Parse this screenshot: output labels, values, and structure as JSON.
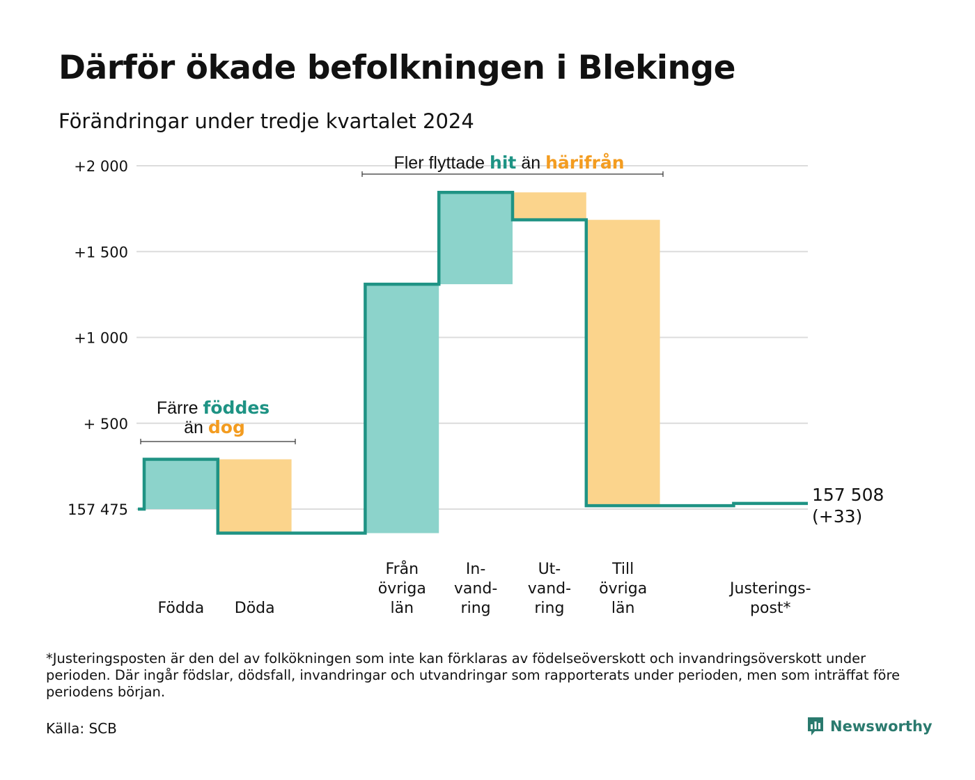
{
  "title": "Därför ökade befolkningen i Blekinge",
  "subtitle": "Förändringar under tredje kvartalet 2024",
  "footnote": "*Justeringsposten är den del av folkökningen som inte kan förklaras av födelseöverskott och invandringsöverskott under perioden. Där ingår födslar, dödsfall, invandringar och utvandringar som rapporterats under perioden, men som inträffat före periodens början.",
  "source": "Källa: SCB",
  "brand": "Newsworthy",
  "colors": {
    "teal": "#8cd3cb",
    "orange": "#fbd48c",
    "line": "#1f9384",
    "teal_text": "#1e9384",
    "orange_text": "#f39c20",
    "grid": "#dcdcdc"
  },
  "chart_data": {
    "type": "waterfall",
    "start_value": 157475,
    "end_value": 157508,
    "end_label": "157 508",
    "end_change_label": "(+33)",
    "y_ticks": [
      {
        "value": 0,
        "label": "157 475"
      },
      {
        "value": 500,
        "label": "+  500"
      },
      {
        "value": 1000,
        "label": "+1 000"
      },
      {
        "value": 1500,
        "label": "+1 500"
      },
      {
        "value": 2000,
        "label": "+2 000"
      }
    ],
    "ylim": [
      -200,
      2000
    ],
    "grid": true,
    "steps": [
      {
        "key": "fodda",
        "label_lines": [
          "Födda"
        ],
        "start": 0,
        "end": 290,
        "direction": "in"
      },
      {
        "key": "doda",
        "label_lines": [
          "Döda"
        ],
        "start": 290,
        "end": -140,
        "direction": "out"
      },
      {
        "key": "gap",
        "label_lines": [],
        "start": -140,
        "end": -140,
        "direction": "none"
      },
      {
        "key": "fran_ovriga_lan",
        "label_lines": [
          "Från",
          "övriga",
          "län"
        ],
        "start": -140,
        "end": 1310,
        "direction": "in"
      },
      {
        "key": "invandring",
        "label_lines": [
          "In-",
          "vand-",
          "ring"
        ],
        "start": 1310,
        "end": 1845,
        "direction": "in"
      },
      {
        "key": "utvandring",
        "label_lines": [
          "Ut-",
          "vand-",
          "ring"
        ],
        "start": 1845,
        "end": 1685,
        "direction": "out"
      },
      {
        "key": "till_ovriga_lan",
        "label_lines": [
          "Till",
          "övriga",
          "län"
        ],
        "start": 1685,
        "end": 20,
        "direction": "out"
      },
      {
        "key": "gap2",
        "label_lines": [],
        "start": 20,
        "end": 20,
        "direction": "none"
      },
      {
        "key": "justeringspost",
        "label_lines": [
          "Justerings-",
          "post*"
        ],
        "start": 20,
        "end": 33,
        "direction": "adjust"
      }
    ],
    "annotations": {
      "natural": {
        "prefix": "Färre",
        "word1": "föddes",
        "middle": "än",
        "word2": "dog"
      },
      "migration": {
        "prefix": "Fler flyttade",
        "word1": "hit",
        "middle": "än",
        "word2": "härifrån"
      }
    }
  }
}
